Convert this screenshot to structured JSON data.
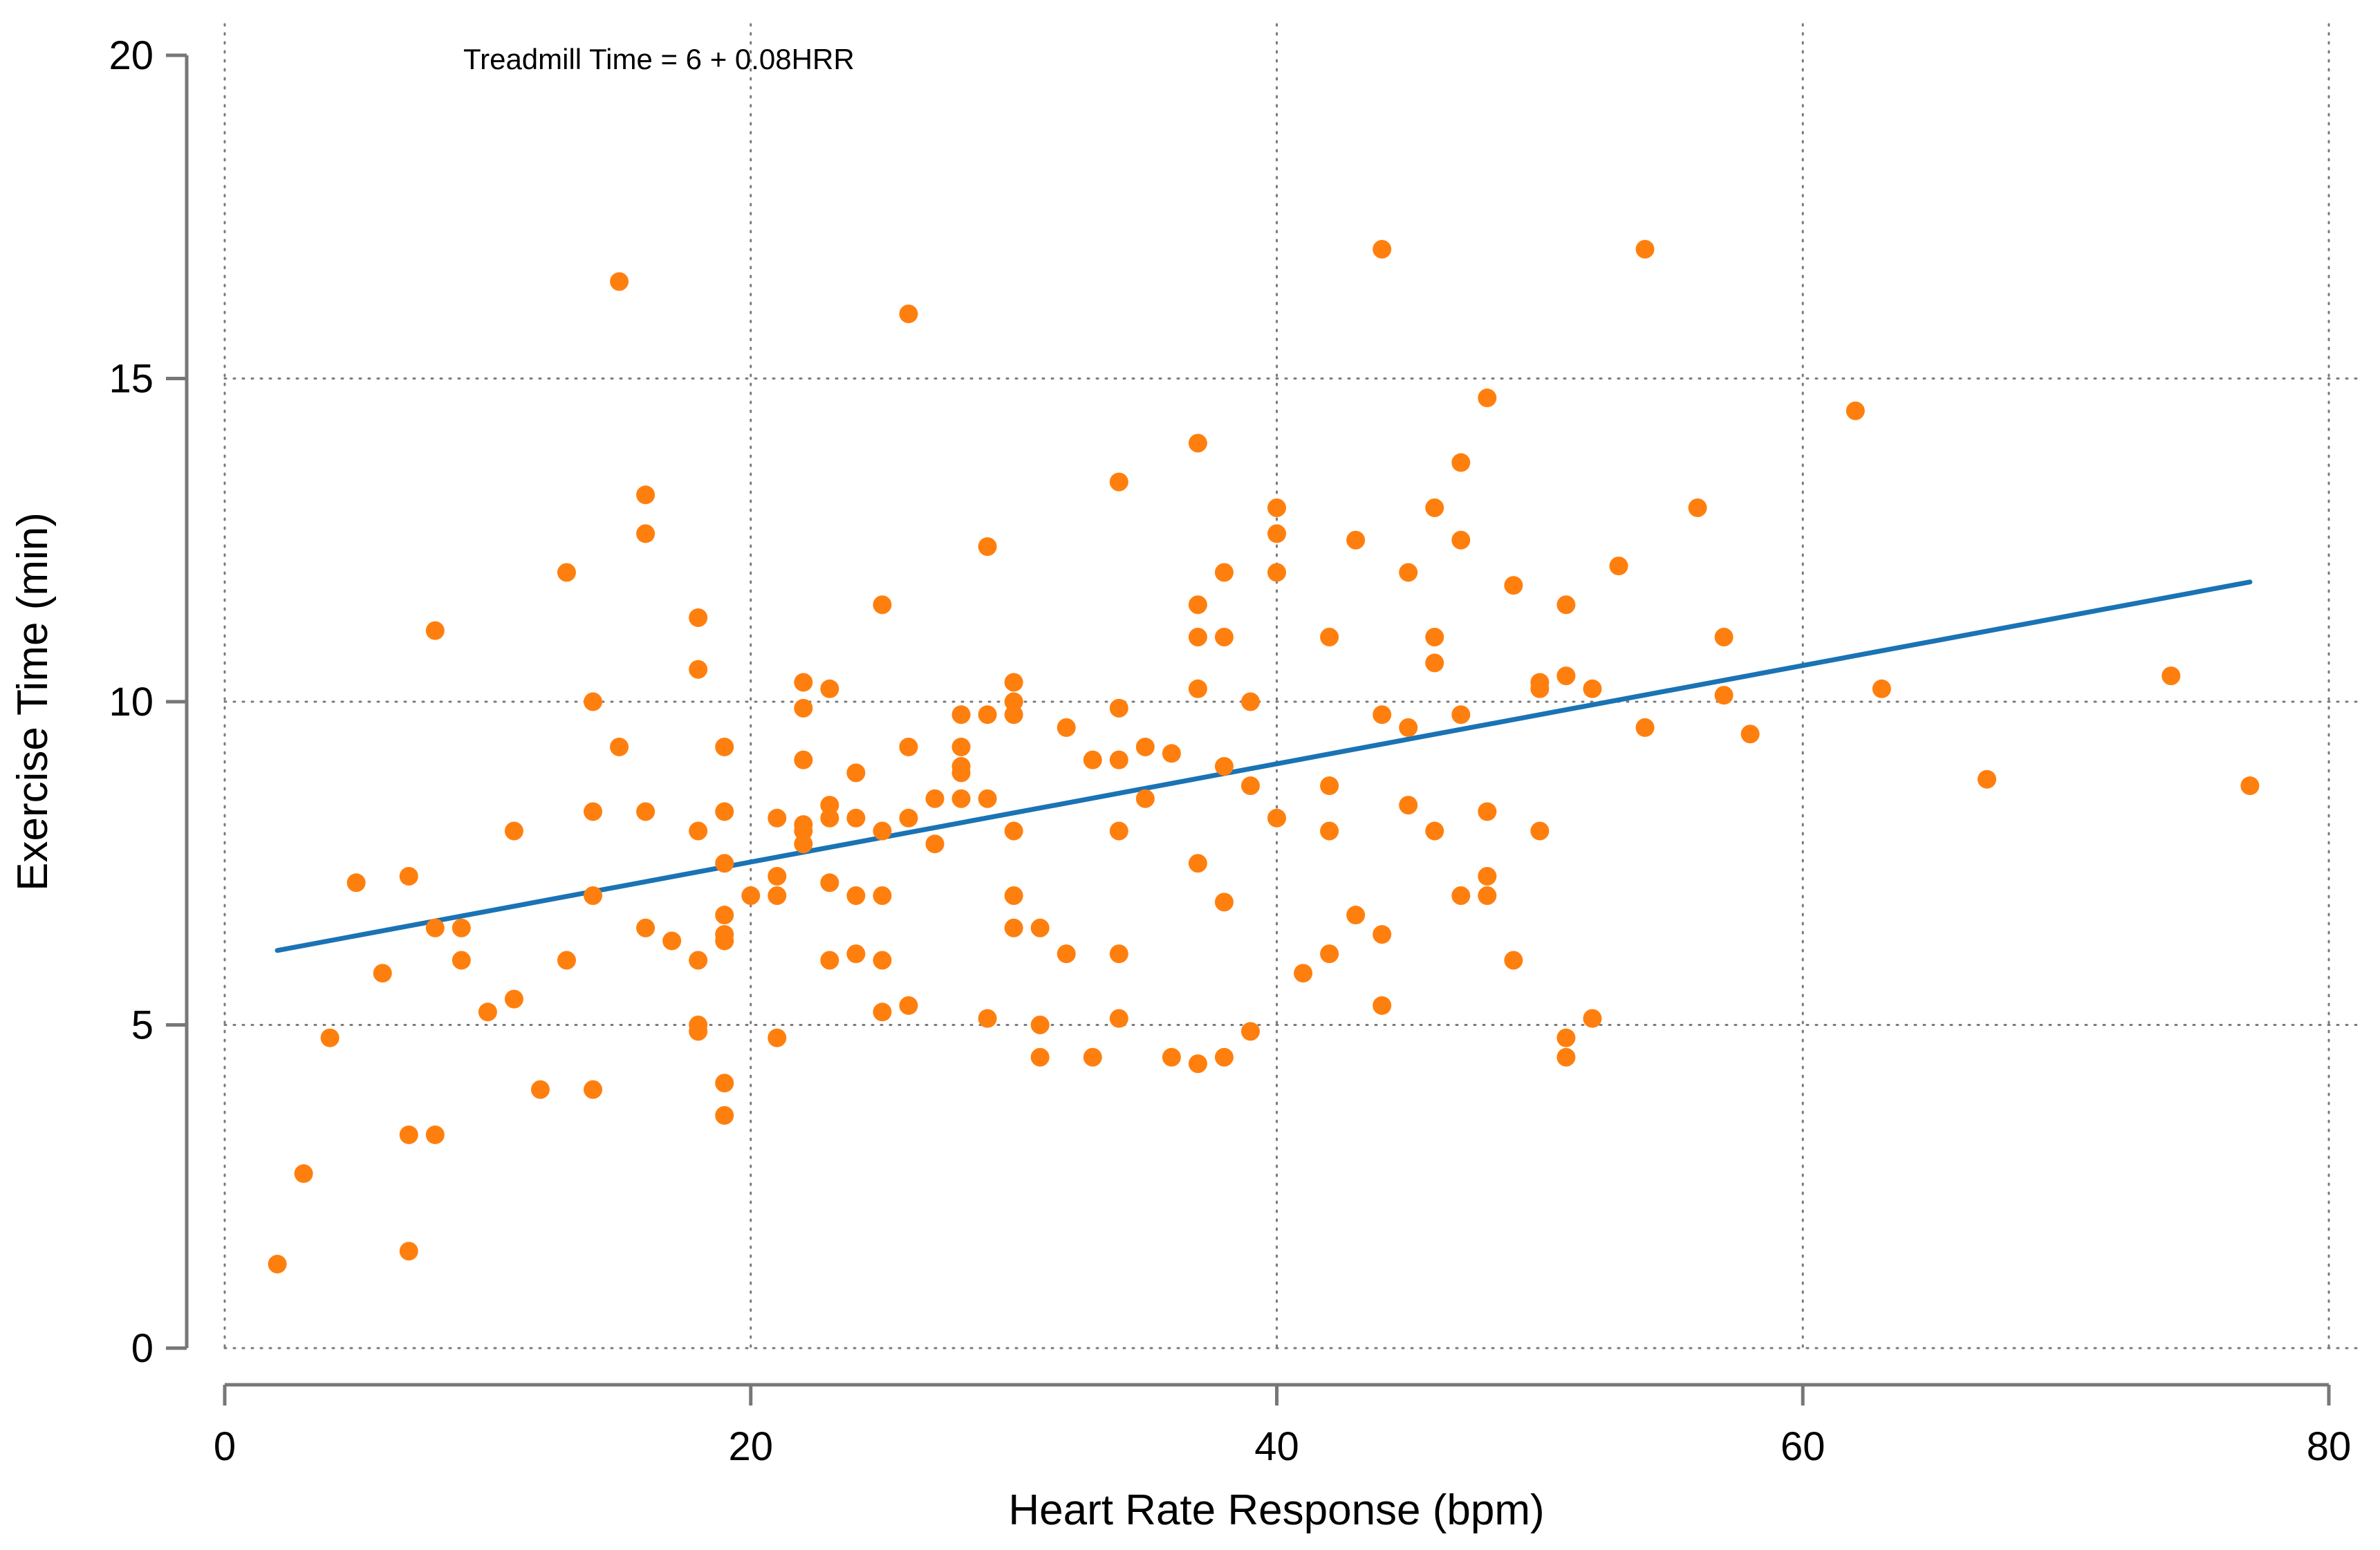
{
  "chart_data": {
    "type": "scatter",
    "title": "",
    "annotation": "Treadmill Time = 6 + 0.08HRR",
    "xlabel": "Heart Rate Response (bpm)",
    "ylabel": "Exercise Time (min)",
    "xlim": [
      0,
      80
    ],
    "ylim": [
      0,
      20
    ],
    "xticks": [
      0,
      20,
      40,
      60,
      80
    ],
    "yticks": [
      0,
      5,
      10,
      15,
      20
    ],
    "grid": true,
    "colors": {
      "points": "#ff7f0e",
      "fit_line": "#1a73b4",
      "axes": "#777777",
      "grid": "#7a7a7a"
    },
    "fit_line": {
      "intercept": 6,
      "slope": 0.076,
      "x_start": 2,
      "x_end": 77
    },
    "series": [
      {
        "name": "observations",
        "points": [
          [
            2,
            1.3
          ],
          [
            3,
            2.7
          ],
          [
            4,
            4.8
          ],
          [
            5,
            7.2
          ],
          [
            6,
            5.8
          ],
          [
            7,
            7.3
          ],
          [
            7,
            3.3
          ],
          [
            7,
            1.5
          ],
          [
            8,
            11.1
          ],
          [
            8,
            6.5
          ],
          [
            8,
            3.3
          ],
          [
            9,
            6.5
          ],
          [
            9,
            6.0
          ],
          [
            10,
            5.2
          ],
          [
            11,
            8.0
          ],
          [
            11,
            5.4
          ],
          [
            12,
            4.0
          ],
          [
            13,
            12.0
          ],
          [
            13,
            6.0
          ],
          [
            14,
            10.0
          ],
          [
            14,
            8.3
          ],
          [
            14,
            7.0
          ],
          [
            14,
            4.0
          ],
          [
            15,
            16.5
          ],
          [
            15,
            9.3
          ],
          [
            16,
            13.2
          ],
          [
            16,
            12.6
          ],
          [
            16,
            8.3
          ],
          [
            16,
            6.5
          ],
          [
            17,
            6.3
          ],
          [
            18,
            11.3
          ],
          [
            18,
            10.5
          ],
          [
            18,
            8.0
          ],
          [
            18,
            6.0
          ],
          [
            18,
            5.0
          ],
          [
            18,
            4.9
          ],
          [
            19,
            9.3
          ],
          [
            19,
            8.3
          ],
          [
            19,
            7.5
          ],
          [
            19,
            6.7
          ],
          [
            19,
            6.4
          ],
          [
            19,
            6.3
          ],
          [
            19,
            4.1
          ],
          [
            19,
            3.6
          ],
          [
            20,
            7.0
          ],
          [
            21,
            8.2
          ],
          [
            21,
            7.3
          ],
          [
            21,
            7.0
          ],
          [
            21,
            4.8
          ],
          [
            22,
            10.3
          ],
          [
            22,
            9.9
          ],
          [
            22,
            9.1
          ],
          [
            22,
            8.1
          ],
          [
            22,
            8.0
          ],
          [
            22,
            7.8
          ],
          [
            23,
            10.2
          ],
          [
            23,
            8.4
          ],
          [
            23,
            8.2
          ],
          [
            23,
            7.2
          ],
          [
            23,
            6.0
          ],
          [
            24,
            8.9
          ],
          [
            24,
            8.2
          ],
          [
            24,
            7.0
          ],
          [
            24,
            6.1
          ],
          [
            25,
            11.5
          ],
          [
            25,
            8.0
          ],
          [
            25,
            7.0
          ],
          [
            25,
            6.0
          ],
          [
            25,
            5.2
          ],
          [
            26,
            16.0
          ],
          [
            26,
            9.3
          ],
          [
            26,
            8.2
          ],
          [
            26,
            5.3
          ],
          [
            27,
            8.5
          ],
          [
            27,
            7.8
          ],
          [
            28,
            9.8
          ],
          [
            28,
            9.3
          ],
          [
            28,
            9.0
          ],
          [
            28,
            8.9
          ],
          [
            28,
            8.5
          ],
          [
            29,
            12.4
          ],
          [
            29,
            9.8
          ],
          [
            29,
            8.5
          ],
          [
            29,
            5.1
          ],
          [
            30,
            10.3
          ],
          [
            30,
            10.0
          ],
          [
            30,
            9.8
          ],
          [
            30,
            8.0
          ],
          [
            30,
            7.0
          ],
          [
            30,
            6.5
          ],
          [
            31,
            6.5
          ],
          [
            31,
            5.0
          ],
          [
            31,
            4.5
          ],
          [
            32,
            9.6
          ],
          [
            32,
            6.1
          ],
          [
            33,
            9.1
          ],
          [
            33,
            4.5
          ],
          [
            34,
            13.4
          ],
          [
            34,
            9.9
          ],
          [
            34,
            9.1
          ],
          [
            34,
            8.0
          ],
          [
            34,
            6.1
          ],
          [
            34,
            5.1
          ],
          [
            35,
            9.3
          ],
          [
            35,
            8.5
          ],
          [
            36,
            9.2
          ],
          [
            36,
            4.5
          ],
          [
            37,
            14.0
          ],
          [
            37,
            11.5
          ],
          [
            37,
            11.0
          ],
          [
            37,
            10.2
          ],
          [
            37,
            7.5
          ],
          [
            37,
            4.4
          ],
          [
            38,
            12.0
          ],
          [
            38,
            11.0
          ],
          [
            38,
            9.0
          ],
          [
            38,
            6.9
          ],
          [
            38,
            4.5
          ],
          [
            39,
            10.0
          ],
          [
            39,
            8.7
          ],
          [
            39,
            4.9
          ],
          [
            40,
            13.0
          ],
          [
            40,
            12.6
          ],
          [
            40,
            12.0
          ],
          [
            40,
            8.2
          ],
          [
            41,
            5.8
          ],
          [
            42,
            11.0
          ],
          [
            42,
            8.7
          ],
          [
            42,
            8.0
          ],
          [
            42,
            6.1
          ],
          [
            43,
            12.5
          ],
          [
            43,
            6.7
          ],
          [
            44,
            17.0
          ],
          [
            44,
            9.8
          ],
          [
            44,
            6.4
          ],
          [
            44,
            5.3
          ],
          [
            45,
            12.0
          ],
          [
            45,
            9.6
          ],
          [
            45,
            8.4
          ],
          [
            46,
            13.0
          ],
          [
            46,
            11.0
          ],
          [
            46,
            10.6
          ],
          [
            46,
            8.0
          ],
          [
            47,
            13.7
          ],
          [
            47,
            12.5
          ],
          [
            47,
            9.8
          ],
          [
            47,
            7.0
          ],
          [
            48,
            14.7
          ],
          [
            48,
            8.3
          ],
          [
            48,
            7.3
          ],
          [
            48,
            7.0
          ],
          [
            49,
            11.8
          ],
          [
            49,
            6.0
          ],
          [
            50,
            10.3
          ],
          [
            50,
            10.2
          ],
          [
            50,
            8.0
          ],
          [
            51,
            11.5
          ],
          [
            51,
            10.4
          ],
          [
            51,
            4.8
          ],
          [
            51,
            4.5
          ],
          [
            52,
            10.2
          ],
          [
            52,
            5.1
          ],
          [
            53,
            12.1
          ],
          [
            54,
            17.0
          ],
          [
            54,
            9.6
          ],
          [
            56,
            13.0
          ],
          [
            57,
            11.0
          ],
          [
            57,
            10.1
          ],
          [
            58,
            9.5
          ],
          [
            62,
            14.5
          ],
          [
            63,
            10.2
          ],
          [
            67,
            8.8
          ],
          [
            74,
            10.4
          ],
          [
            77,
            8.7
          ]
        ]
      }
    ]
  }
}
